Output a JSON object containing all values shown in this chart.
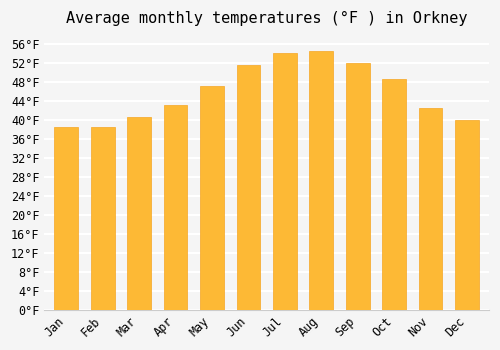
{
  "title": "Average monthly temperatures (°F ) in Orkney",
  "months": [
    "Jan",
    "Feb",
    "Mar",
    "Apr",
    "May",
    "Jun",
    "Jul",
    "Aug",
    "Sep",
    "Oct",
    "Nov",
    "Dec"
  ],
  "values": [
    38.5,
    38.5,
    40.5,
    43.0,
    47.0,
    51.5,
    54.0,
    54.5,
    52.0,
    48.5,
    42.5,
    40.0
  ],
  "bar_color_main": "#FDB935",
  "bar_color_edge": "#F5A623",
  "background_color": "#f5f5f5",
  "grid_color": "#ffffff",
  "title_fontsize": 11,
  "tick_fontsize": 8.5,
  "ylim": [
    0,
    58
  ],
  "ytick_step": 4
}
